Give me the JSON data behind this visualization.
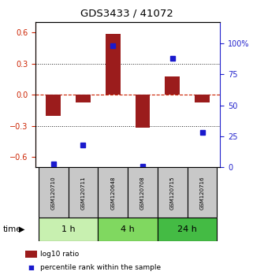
{
  "title": "GDS3433 / 41072",
  "samples": [
    "GSM120710",
    "GSM120711",
    "GSM120648",
    "GSM120708",
    "GSM120715",
    "GSM120716"
  ],
  "log10_ratio": [
    -0.2,
    -0.07,
    0.59,
    -0.32,
    0.18,
    -0.07
  ],
  "percentile_rank": [
    3,
    18,
    98,
    1,
    88,
    28
  ],
  "time_groups": [
    {
      "label": "1 h",
      "start": 0,
      "end": 2,
      "color": "#c8f0b0"
    },
    {
      "label": "4 h",
      "start": 2,
      "end": 4,
      "color": "#80d860"
    },
    {
      "label": "24 h",
      "start": 4,
      "end": 6,
      "color": "#44bb44"
    }
  ],
  "ylim_left": [
    -0.7,
    0.7
  ],
  "ylim_right": [
    0,
    116.67
  ],
  "yticks_left": [
    -0.6,
    -0.3,
    0.0,
    0.3,
    0.6
  ],
  "yticks_right": [
    0,
    25,
    50,
    75,
    100
  ],
  "ytick_labels_right": [
    "0",
    "25",
    "50",
    "75",
    "100%"
  ],
  "bar_color": "#9b1c1c",
  "dot_color": "#1a1acd",
  "zero_line_color": "#cc2200",
  "grid_color": "#222222",
  "left_axis_color": "#cc2200",
  "right_axis_color": "#2222cc",
  "legend_bar_label": "log10 ratio",
  "legend_dot_label": "percentile rank within the sample",
  "sample_bg": "#c8c8c8"
}
